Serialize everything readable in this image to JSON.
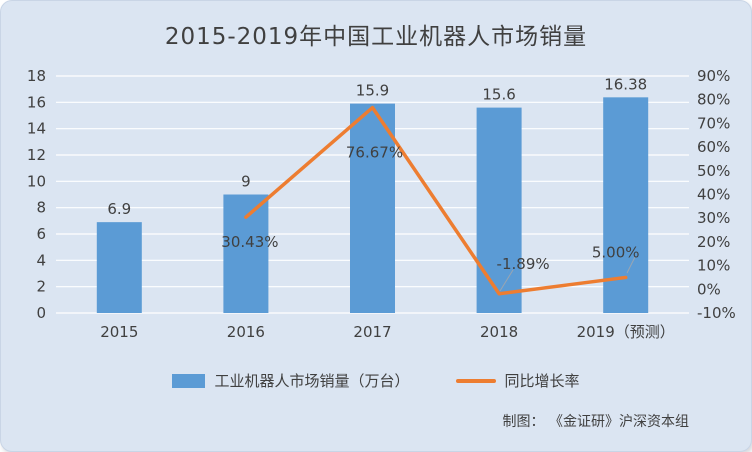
{
  "title": "2015-2019年中国工业机器人市场销量",
  "credit": "制图： 《金证研》沪深资本组",
  "legend": {
    "bar_label": "工业机器人市场销量（万台）",
    "line_label": "同比增长率"
  },
  "colors": {
    "bar": "#5B9BD5",
    "line": "#ED7D31",
    "background": "#DBE5F2",
    "grid": "#FFFFFF",
    "text": "#404040",
    "leader": "#9AA5B1"
  },
  "chart_data": {
    "type": "bar+line combo",
    "title": "2015-2019年中国工业机器人市场销量",
    "categories": [
      "2015",
      "2016",
      "2017",
      "2018",
      "2019（预测）"
    ],
    "series": [
      {
        "name": "工业机器人市场销量（万台）",
        "type": "bar",
        "axis": "left",
        "values": [
          6.9,
          9,
          15.9,
          15.6,
          16.38
        ],
        "labels": [
          "6.9",
          "9",
          "15.9",
          "15.6",
          "16.38"
        ]
      },
      {
        "name": "同比增长率",
        "type": "line",
        "axis": "right",
        "values": [
          null,
          30.43,
          76.67,
          -1.89,
          5.0
        ],
        "labels": [
          null,
          "30.43%",
          "76.67%",
          "-1.89%",
          "5.00%"
        ]
      }
    ],
    "left_axis": {
      "min": 0,
      "max": 18,
      "step": 2,
      "ticks": [
        "0",
        "2",
        "4",
        "6",
        "8",
        "10",
        "12",
        "14",
        "16",
        "18"
      ]
    },
    "right_axis": {
      "min": -10,
      "max": 90,
      "step": 10,
      "suffix": "%",
      "ticks": [
        "-10%",
        "0%",
        "10%",
        "20%",
        "30%",
        "40%",
        "50%",
        "60%",
        "70%",
        "80%",
        "90%"
      ]
    },
    "grid": "horizontal",
    "legend_position": "bottom"
  }
}
